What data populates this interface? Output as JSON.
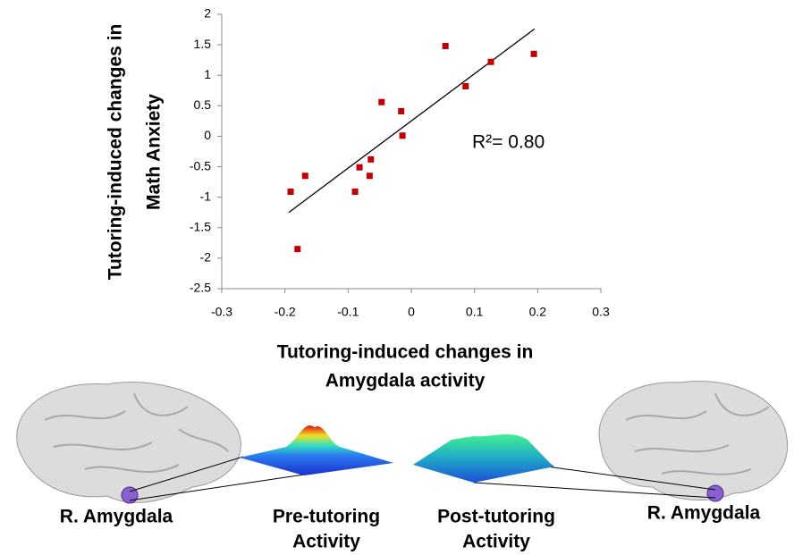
{
  "chart_data": {
    "type": "scatter",
    "ylabel": [
      "Tutoring-induced changes in",
      "Math Anxiety"
    ],
    "xlabel": [
      "Tutoring-induced changes in",
      "Amygdala activity"
    ],
    "x": [
      -0.191,
      -0.168,
      -0.18,
      -0.089,
      -0.082,
      -0.064,
      -0.066,
      -0.047,
      -0.016,
      -0.014,
      0.054,
      0.086,
      0.126,
      0.194
    ],
    "values": [
      -0.91,
      -0.65,
      -1.85,
      -0.91,
      -0.51,
      -0.38,
      -0.65,
      0.56,
      0.41,
      0.01,
      1.48,
      0.82,
      1.22,
      1.35
    ],
    "color": "#c00000",
    "trendline": {
      "x": [
        -0.194,
        0.195
      ],
      "y": [
        -1.25,
        1.76
      ],
      "color": "#000000"
    },
    "annotation": "R²= 0.80",
    "xlim": [
      -0.3,
      0.3
    ],
    "xticks": [
      -0.3,
      -0.2,
      -0.1,
      0,
      0.1,
      0.2,
      0.3
    ],
    "ylim": [
      -2.5,
      2
    ],
    "yticks": [
      -2.5,
      -2,
      -1.5,
      -1,
      -0.5,
      0,
      0.5,
      1,
      1.5,
      2
    ],
    "grid": false
  },
  "panel_labels": {
    "left_region": "R. Amygdala",
    "pre": [
      "Pre-tutoring",
      "Activity"
    ],
    "post": [
      "Post-tutoring",
      "Activity"
    ],
    "right_region": "R. Amygdala"
  }
}
